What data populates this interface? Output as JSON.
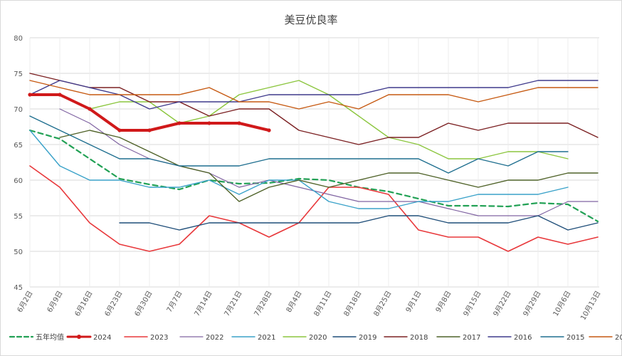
{
  "chart_data": {
    "type": "line",
    "title": "美豆优良率",
    "xlabel": "",
    "ylabel": "",
    "ylim": [
      45,
      80
    ],
    "yticks": [
      45,
      50,
      55,
      60,
      65,
      70,
      75,
      80
    ],
    "categories": [
      "6月2日",
      "6月9日",
      "6月16日",
      "6月23日",
      "6月30日",
      "7月7日",
      "7月14日",
      "7月21日",
      "7月28日",
      "8月4日",
      "8月11日",
      "8月18日",
      "8月25日",
      "9月1日",
      "9月8日",
      "9月15日",
      "9月22日",
      "9月29日",
      "10月6日",
      "10月13日"
    ],
    "legend_position": "bottom",
    "grid": true,
    "series": [
      {
        "name": "五年均值",
        "color": "#22a155",
        "dashed": true,
        "width": 2.2,
        "values": [
          67,
          65.8,
          63,
          60.2,
          59.4,
          58.7,
          60,
          59.5,
          59.6,
          60.2,
          60,
          59,
          58.4,
          57.4,
          56.4,
          56.4,
          56.3,
          56.8,
          56.6,
          54.2
        ]
      },
      {
        "name": "2024",
        "color": "#d0191a",
        "dashed": false,
        "width": 4,
        "marker": true,
        "values": [
          72,
          72,
          70,
          67,
          67,
          68,
          68,
          68,
          67,
          null,
          null,
          null,
          null,
          null,
          null,
          null,
          null,
          null,
          null,
          null
        ]
      },
      {
        "name": "2023",
        "color": "#e8383b",
        "dashed": false,
        "width": 1.6,
        "values": [
          62,
          59,
          54,
          51,
          50,
          51,
          55,
          54,
          52,
          54,
          59,
          59,
          58,
          53,
          52,
          52,
          50,
          52,
          51,
          52
        ]
      },
      {
        "name": "2022",
        "color": "#8064a2",
        "dashed": false,
        "width": 1.2,
        "values": [
          null,
          70,
          68,
          65,
          63,
          62,
          61,
          59,
          60,
          59,
          58,
          57,
          57,
          57,
          56,
          55,
          55,
          55,
          57,
          57
        ]
      },
      {
        "name": "2021",
        "color": "#3aa2c9",
        "dashed": false,
        "width": 1.4,
        "values": [
          67,
          62,
          60,
          60,
          59,
          59,
          60,
          58,
          60,
          60,
          57,
          56,
          56,
          57,
          57,
          58,
          58,
          58,
          59,
          null
        ]
      },
      {
        "name": "2020",
        "color": "#8cc63f",
        "dashed": false,
        "width": 1.4,
        "values": [
          null,
          null,
          70,
          71,
          71,
          68,
          69,
          72,
          73,
          74,
          72,
          69,
          66,
          65,
          63,
          63,
          64,
          64,
          63,
          null
        ]
      },
      {
        "name": "2019",
        "color": "#1f4e79",
        "dashed": false,
        "width": 1.4,
        "values": [
          null,
          null,
          null,
          54,
          54,
          53,
          54,
          54,
          54,
          54,
          54,
          54,
          55,
          55,
          54,
          54,
          54,
          55,
          53,
          54
        ]
      },
      {
        "name": "2018",
        "color": "#7b2022",
        "dashed": false,
        "width": 1.4,
        "values": [
          75,
          74,
          73,
          73,
          71,
          71,
          69,
          70,
          70,
          67,
          66,
          65,
          66,
          66,
          68,
          67,
          68,
          68,
          68,
          66
        ]
      },
      {
        "name": "2017",
        "color": "#4f6228",
        "dashed": false,
        "width": 1.4,
        "values": [
          null,
          66,
          67,
          66,
          64,
          62,
          61,
          57,
          59,
          60,
          59,
          60,
          61,
          61,
          60,
          59,
          60,
          60,
          61,
          61
        ]
      },
      {
        "name": "2016",
        "color": "#3f3a8c",
        "dashed": false,
        "width": 1.4,
        "values": [
          72,
          74,
          73,
          72,
          70,
          71,
          71,
          71,
          72,
          72,
          72,
          72,
          73,
          73,
          73,
          73,
          73,
          74,
          74,
          74
        ]
      },
      {
        "name": "2015",
        "color": "#1f6f8f",
        "dashed": false,
        "width": 1.4,
        "values": [
          69,
          67,
          65,
          63,
          63,
          62,
          62,
          62,
          63,
          63,
          63,
          63,
          63,
          63,
          61,
          63,
          62,
          64,
          64,
          null
        ]
      },
      {
        "name": "2014",
        "color": "#c65911",
        "dashed": false,
        "width": 1.4,
        "values": [
          74,
          73,
          72,
          72,
          72,
          72,
          73,
          71,
          71,
          70,
          71,
          70,
          72,
          72,
          72,
          71,
          72,
          73,
          73,
          73
        ]
      }
    ]
  }
}
